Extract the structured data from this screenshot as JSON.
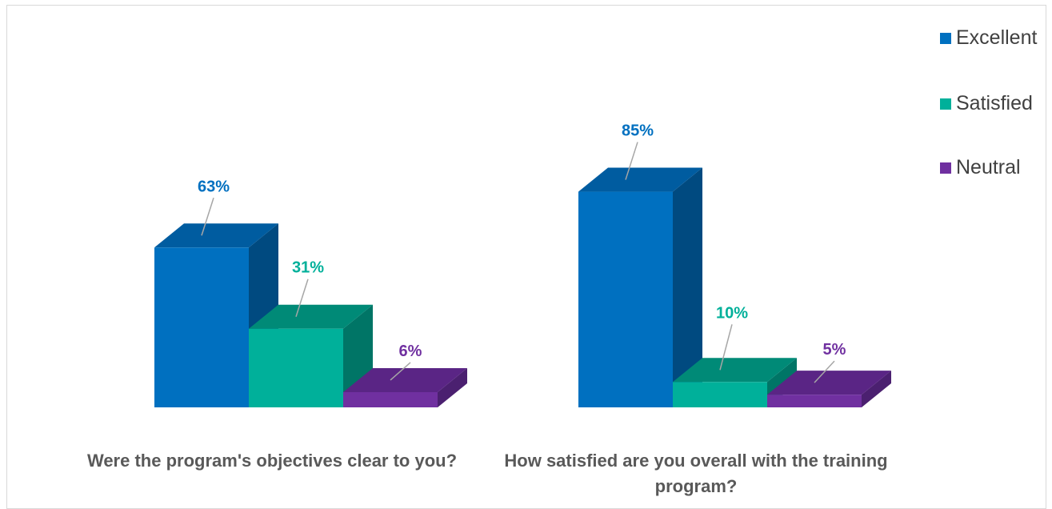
{
  "chart_data": {
    "type": "bar",
    "title": "",
    "categories": [
      "Were the program's objectives clear to you?",
      "How satisfied are you overall with the training program?"
    ],
    "series": [
      {
        "name": "Excellent",
        "values": [
          63,
          85
        ],
        "labels": [
          "63%",
          "85%"
        ]
      },
      {
        "name": "Satisfied",
        "values": [
          31,
          10
        ],
        "labels": [
          "31%",
          "10%"
        ]
      },
      {
        "name": "Neutral",
        "values": [
          6,
          5
        ],
        "labels": [
          "6%",
          "5%"
        ]
      }
    ],
    "ylim": [
      0,
      100
    ],
    "grid": false,
    "legend_position": "right",
    "colors": {
      "Excellent": {
        "front": "#0070c0",
        "side": "#004a80",
        "top": "#005ca0",
        "label": "#0070c0"
      },
      "Satisfied": {
        "front": "#00b09a",
        "side": "#007566",
        "top": "#008a77",
        "label": "#00b09a"
      },
      "Neutral": {
        "front": "#7030a0",
        "side": "#4b2070",
        "top": "#5a2585",
        "label": "#7030a0"
      }
    }
  }
}
